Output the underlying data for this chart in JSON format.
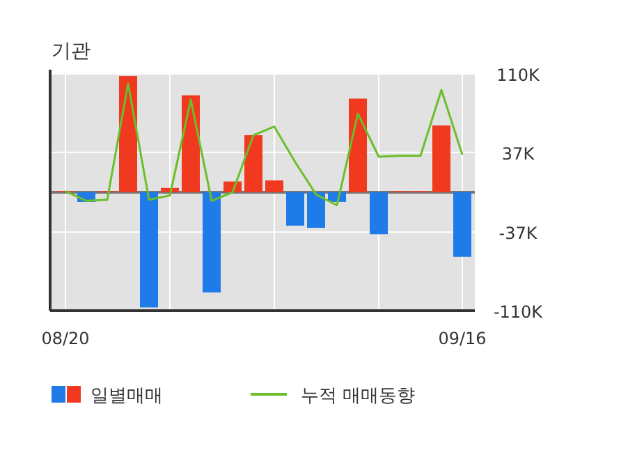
{
  "chart_data": {
    "type": "bar",
    "title": "기관",
    "categories": [
      "08/20",
      null,
      null,
      null,
      null,
      null,
      null,
      null,
      null,
      null,
      null,
      null,
      null,
      null,
      null,
      null,
      null,
      null,
      null,
      "09/16"
    ],
    "series": [
      {
        "name": "일별매매",
        "colors": [
          "#f0391e",
          "#1e7be8",
          "#f0391e",
          "#f0391e",
          "#1e7be8",
          "#f0391e",
          "#f0391e",
          "#1e7be8",
          "#f0391e",
          "#f0391e",
          "#f0391e",
          "#1e7be8",
          "#1e7be8",
          "#1e7be8",
          "#f0391e",
          "#1e7be8",
          "#f0391e",
          "#f0391e",
          "#f0391e",
          "#1e7be8"
        ],
        "values": [
          1,
          -9,
          1,
          108,
          -107,
          4,
          90,
          -93,
          10,
          53,
          11,
          -31,
          -33,
          -9,
          87,
          -39,
          1,
          1,
          62,
          -60
        ]
      },
      {
        "name": "누적 매매동향",
        "type": "line",
        "color": "#6bbf2a",
        "values": [
          1,
          -8,
          -7,
          101,
          -7,
          -3,
          86,
          -8,
          0,
          53,
          61,
          28,
          -2,
          -12,
          73,
          33,
          34,
          34,
          95,
          35
        ]
      }
    ],
    "ylim": [
      -110,
      110
    ],
    "yticks": [
      {
        "value": 110,
        "label": "110K"
      },
      {
        "value": 37,
        "label": "37K"
      },
      {
        "value": -37,
        "label": "-37K"
      },
      {
        "value": -110,
        "label": "-110K"
      }
    ],
    "grid": true,
    "legend": "bottom",
    "marker": "none",
    "line_style": "solid"
  }
}
